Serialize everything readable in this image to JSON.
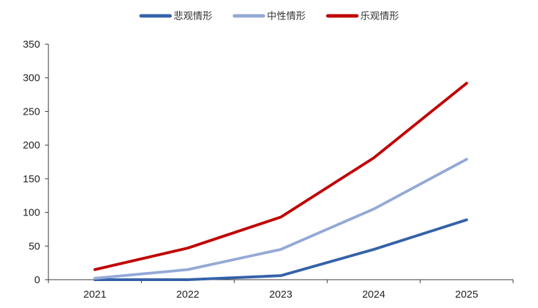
{
  "chart_data": {
    "type": "line",
    "title": "",
    "xlabel": "",
    "ylabel": "",
    "categories": [
      "2021",
      "2022",
      "2023",
      "2024",
      "2025"
    ],
    "ylim": [
      0,
      350
    ],
    "yticks": [
      0,
      50,
      100,
      150,
      200,
      250,
      300,
      350
    ],
    "grid": false,
    "legend_position": "top-center",
    "series": [
      {
        "name": "悲观情形",
        "color": "#3562a8",
        "values": [
          0,
          0,
          6,
          45,
          89
        ]
      },
      {
        "name": "中性情形",
        "color": "#94a9d6",
        "values": [
          2,
          15,
          45,
          105,
          179
        ]
      },
      {
        "name": "乐观情形",
        "color": "#c00000",
        "values": [
          15,
          47,
          93,
          181,
          292
        ]
      }
    ]
  }
}
